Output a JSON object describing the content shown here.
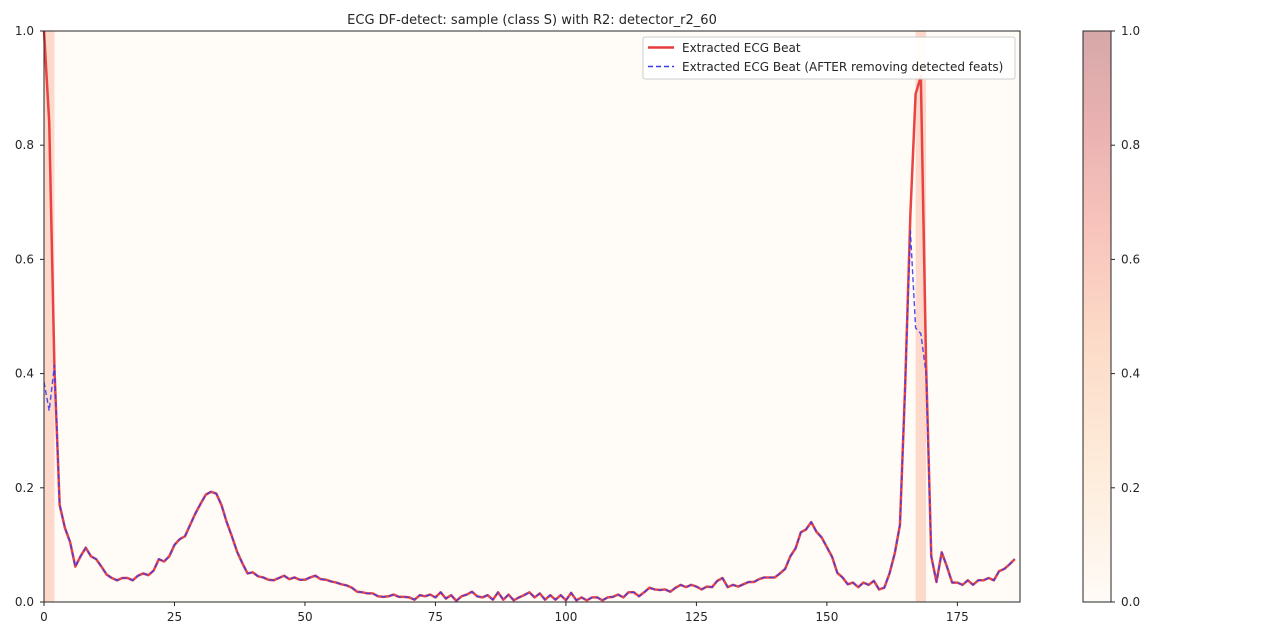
{
  "chart_data": {
    "type": "line",
    "title": "ECG DF-detect: sample (class S) with R2: detector_r2_60",
    "xlabel": "",
    "ylabel": "",
    "xlim": [
      0,
      187
    ],
    "ylim": [
      0,
      1
    ],
    "xticks": [
      0,
      25,
      50,
      75,
      100,
      125,
      150,
      175
    ],
    "yticks": [
      0.0,
      0.2,
      0.4,
      0.6,
      0.8,
      1.0
    ],
    "grid": false,
    "legend_position": "top-right",
    "colors": {
      "original": "#e83a3a",
      "after": "#3b3bf0",
      "highlight_high": "#d9a3a3",
      "highlight_mid": "#fbd2c2",
      "background_tint": "#fffbf7"
    },
    "series": [
      {
        "name": "Extracted ECG Beat",
        "style": "solid",
        "values": [
          1.0,
          0.84,
          0.41,
          0.17,
          0.13,
          0.105,
          0.062,
          0.08,
          0.095,
          0.08,
          0.075,
          0.062,
          0.048,
          0.042,
          0.038,
          0.042,
          0.042,
          0.038,
          0.046,
          0.05,
          0.047,
          0.055,
          0.075,
          0.071,
          0.08,
          0.1,
          0.11,
          0.115,
          0.135,
          0.155,
          0.172,
          0.188,
          0.193,
          0.19,
          0.17,
          0.14,
          0.115,
          0.088,
          0.068,
          0.05,
          0.052,
          0.045,
          0.043,
          0.039,
          0.038,
          0.042,
          0.046,
          0.04,
          0.043,
          0.039,
          0.039,
          0.043,
          0.046,
          0.04,
          0.039,
          0.036,
          0.034,
          0.031,
          0.029,
          0.025,
          0.018,
          0.017,
          0.015,
          0.015,
          0.01,
          0.009,
          0.01,
          0.013,
          0.009,
          0.009,
          0.008,
          0.004,
          0.012,
          0.01,
          0.013,
          0.008,
          0.017,
          0.006,
          0.012,
          0.002,
          0.01,
          0.013,
          0.018,
          0.01,
          0.008,
          0.012,
          0.004,
          0.017,
          0.004,
          0.013,
          0.003,
          0.008,
          0.012,
          0.017,
          0.008,
          0.015,
          0.004,
          0.012,
          0.004,
          0.012,
          0.003,
          0.016,
          0.003,
          0.008,
          0.003,
          0.008,
          0.008,
          0.003,
          0.008,
          0.009,
          0.013,
          0.008,
          0.017,
          0.017,
          0.01,
          0.017,
          0.025,
          0.022,
          0.021,
          0.022,
          0.018,
          0.025,
          0.03,
          0.026,
          0.03,
          0.027,
          0.022,
          0.027,
          0.026,
          0.037,
          0.042,
          0.026,
          0.03,
          0.027,
          0.031,
          0.035,
          0.035,
          0.04,
          0.043,
          0.043,
          0.043,
          0.05,
          0.058,
          0.08,
          0.094,
          0.122,
          0.127,
          0.14,
          0.123,
          0.113,
          0.096,
          0.079,
          0.051,
          0.043,
          0.031,
          0.034,
          0.026,
          0.034,
          0.03,
          0.037,
          0.022,
          0.025,
          0.05,
          0.085,
          0.135,
          0.38,
          0.68,
          0.89,
          0.92,
          0.42,
          0.08,
          0.035,
          0.087,
          0.062,
          0.034,
          0.034,
          0.03,
          0.038,
          0.03,
          0.038,
          0.038,
          0.042,
          0.038,
          0.054,
          0.058,
          0.066,
          0.075
        ]
      },
      {
        "name": "Extracted ECG Beat (AFTER removing detected feats)",
        "style": "dashed",
        "values": [
          0.385,
          0.335,
          0.415,
          0.17,
          0.13,
          0.105,
          0.062,
          0.08,
          0.095,
          0.08,
          0.075,
          0.062,
          0.048,
          0.042,
          0.038,
          0.042,
          0.042,
          0.038,
          0.046,
          0.05,
          0.047,
          0.055,
          0.075,
          0.071,
          0.08,
          0.1,
          0.11,
          0.115,
          0.135,
          0.155,
          0.172,
          0.188,
          0.193,
          0.19,
          0.17,
          0.14,
          0.115,
          0.088,
          0.068,
          0.05,
          0.052,
          0.045,
          0.043,
          0.039,
          0.038,
          0.042,
          0.046,
          0.04,
          0.043,
          0.039,
          0.039,
          0.043,
          0.046,
          0.04,
          0.039,
          0.036,
          0.034,
          0.031,
          0.029,
          0.025,
          0.018,
          0.017,
          0.015,
          0.015,
          0.01,
          0.009,
          0.01,
          0.013,
          0.009,
          0.009,
          0.008,
          0.004,
          0.012,
          0.01,
          0.013,
          0.008,
          0.017,
          0.006,
          0.012,
          0.002,
          0.01,
          0.013,
          0.018,
          0.01,
          0.008,
          0.012,
          0.004,
          0.017,
          0.004,
          0.013,
          0.003,
          0.008,
          0.012,
          0.017,
          0.008,
          0.015,
          0.004,
          0.012,
          0.004,
          0.012,
          0.003,
          0.016,
          0.003,
          0.008,
          0.003,
          0.008,
          0.008,
          0.003,
          0.008,
          0.009,
          0.013,
          0.008,
          0.017,
          0.017,
          0.01,
          0.017,
          0.025,
          0.022,
          0.021,
          0.022,
          0.018,
          0.025,
          0.03,
          0.026,
          0.03,
          0.027,
          0.022,
          0.027,
          0.026,
          0.037,
          0.042,
          0.026,
          0.03,
          0.027,
          0.031,
          0.035,
          0.035,
          0.04,
          0.043,
          0.043,
          0.043,
          0.05,
          0.058,
          0.08,
          0.094,
          0.122,
          0.127,
          0.14,
          0.123,
          0.113,
          0.096,
          0.079,
          0.051,
          0.043,
          0.031,
          0.034,
          0.026,
          0.034,
          0.03,
          0.037,
          0.022,
          0.025,
          0.05,
          0.085,
          0.135,
          0.38,
          0.65,
          0.48,
          0.47,
          0.4,
          0.08,
          0.035,
          0.087,
          0.062,
          0.034,
          0.034,
          0.03,
          0.038,
          0.03,
          0.038,
          0.038,
          0.042,
          0.038,
          0.054,
          0.058,
          0.066,
          0.075
        ]
      }
    ],
    "importance_regions": [
      {
        "x_start": 0,
        "x_end": 2,
        "value": 0.55
      },
      {
        "x_start": 167,
        "x_end": 169,
        "value": 0.5
      }
    ],
    "background_importance": 0.02,
    "colorbar": {
      "range": [
        0,
        1
      ],
      "ticks": [
        0.0,
        0.2,
        0.4,
        0.6,
        0.8,
        1.0
      ]
    }
  }
}
